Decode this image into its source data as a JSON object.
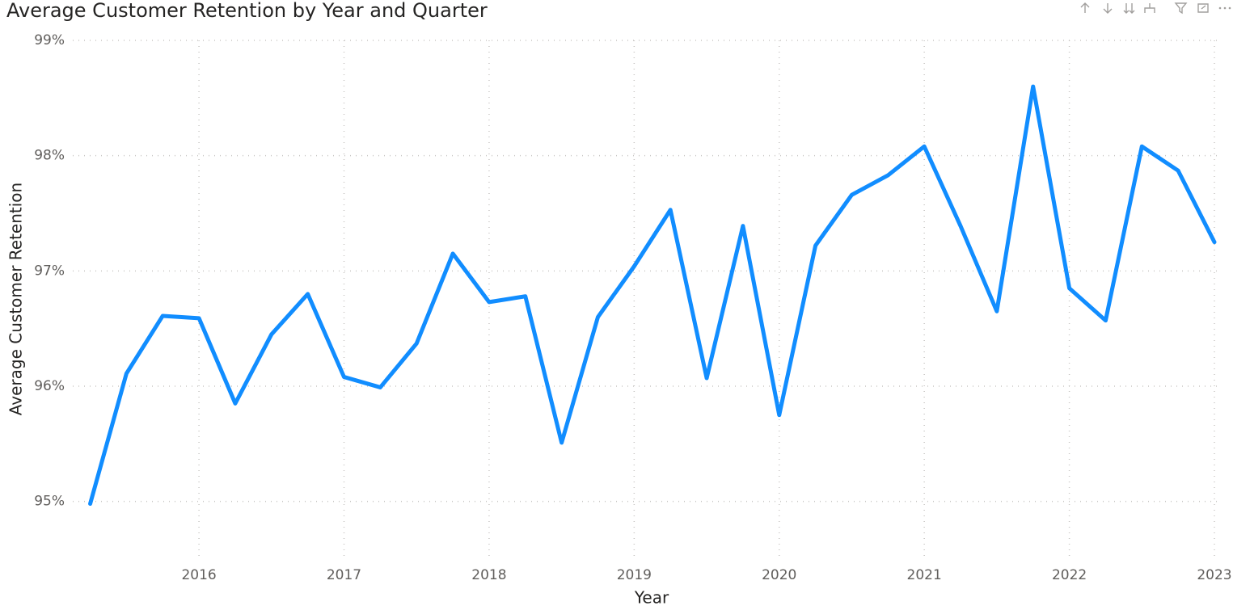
{
  "chart_data": {
    "type": "line",
    "title": "Average Customer Retention by Year and Quarter",
    "x_label": "Year",
    "y_label": "Average Customer Retention",
    "x": [
      2015.25,
      2015.5,
      2015.75,
      2016,
      2016.25,
      2016.5,
      2016.75,
      2017,
      2017.25,
      2017.5,
      2017.75,
      2018,
      2018.25,
      2018.5,
      2018.75,
      2019,
      2019.25,
      2019.5,
      2019.75,
      2020,
      2020.25,
      2020.5,
      2020.75,
      2021,
      2021.25,
      2021.5,
      2021.75,
      2022,
      2022.25,
      2022.5,
      2022.75,
      2023
    ],
    "values": [
      94.98,
      96.11,
      96.61,
      96.59,
      95.85,
      96.45,
      96.8,
      96.08,
      95.99,
      96.37,
      97.15,
      96.73,
      96.78,
      95.51,
      96.6,
      97.04,
      97.53,
      96.07,
      97.39,
      95.75,
      97.22,
      97.66,
      97.83,
      98.08,
      97.39,
      96.65,
      98.6,
      96.85,
      96.57,
      98.08,
      97.87,
      97.25
    ],
    "color": "#118DFF",
    "xlim": [
      2015.13,
      2023
    ],
    "xticks": [
      2016,
      2017,
      2018,
      2019,
      2020,
      2021,
      2022,
      2023
    ],
    "ylim": [
      94.5,
      99
    ],
    "yticks": [
      {
        "value": 95,
        "label": "95%"
      },
      {
        "value": 96,
        "label": "96%"
      },
      {
        "value": 97,
        "label": "97%"
      },
      {
        "value": 98,
        "label": "98%"
      },
      {
        "value": 99,
        "label": "99%"
      }
    ],
    "grid": true
  }
}
